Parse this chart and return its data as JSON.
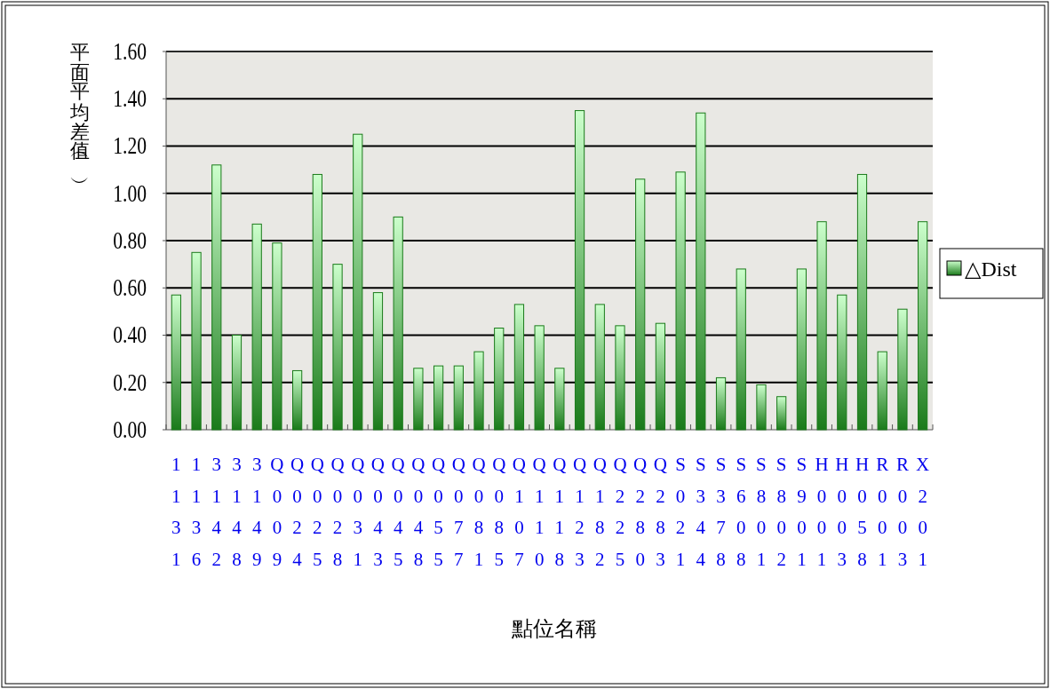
{
  "chart_data": {
    "type": "bar",
    "xlabel": "點位名稱",
    "ylabel": "平面平均差值︵︶",
    "categories": [
      "1131",
      "1136",
      "3142",
      "3148",
      "3149",
      "Q009",
      "Q024",
      "Q025",
      "Q028",
      "Q031",
      "Q043",
      "Q045",
      "Q048",
      "Q055",
      "Q077",
      "Q081",
      "Q085",
      "Q107",
      "Q110",
      "Q118",
      "Q123",
      "Q182",
      "Q225",
      "Q280",
      "Q283",
      "S021",
      "S344",
      "S378",
      "S608",
      "S801",
      "S802",
      "S901",
      "H001",
      "H003",
      "H058",
      "R001",
      "R003",
      "X201"
    ],
    "series": [
      {
        "name": "△Dist",
        "color": "#1a7a1a",
        "values": [
          0.57,
          0.75,
          1.12,
          0.4,
          0.87,
          0.79,
          0.25,
          1.08,
          0.7,
          1.25,
          0.58,
          0.9,
          0.26,
          0.27,
          0.27,
          0.33,
          0.43,
          0.53,
          0.44,
          0.26,
          1.35,
          0.53,
          0.44,
          1.06,
          0.45,
          1.09,
          1.34,
          0.22,
          0.68,
          0.19,
          0.14,
          0.68,
          0.88,
          0.57,
          1.08,
          0.33,
          0.51,
          0.88
        ]
      }
    ],
    "ylim": [
      0,
      1.6
    ],
    "yticks": [
      {
        "value": 0,
        "label": "0.00"
      },
      {
        "value": 0.2,
        "label": "0.20"
      },
      {
        "value": 0.4,
        "label": "0.40"
      },
      {
        "value": 0.6,
        "label": "0.60"
      },
      {
        "value": 0.8,
        "label": "0.80"
      },
      {
        "value": 1.0,
        "label": "1.00"
      },
      {
        "value": 1.2,
        "label": "1.20"
      },
      {
        "value": 1.4,
        "label": "1.40"
      },
      {
        "value": 1.6,
        "label": "1.60"
      }
    ],
    "grid": "y",
    "legend": "right"
  }
}
